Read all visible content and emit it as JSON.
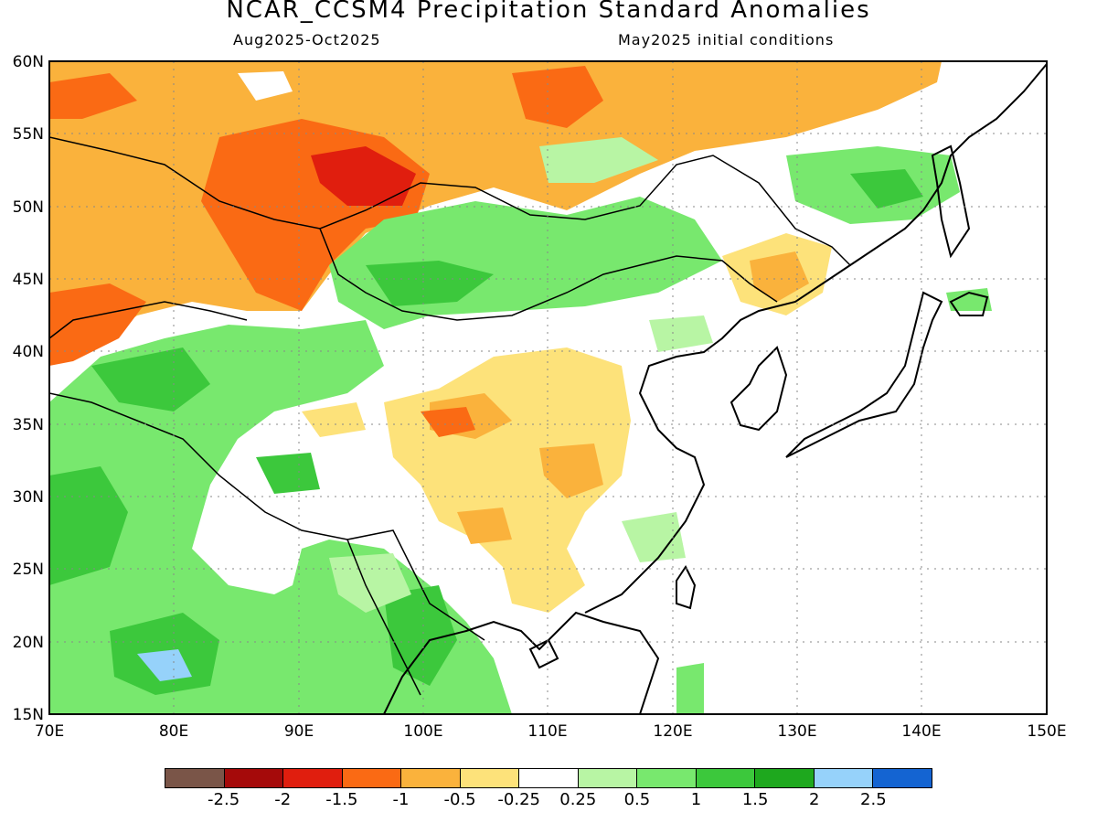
{
  "header": {
    "title": "NCAR_CCSM4 Precipitation Standard Anomalies",
    "period": "Aug2025-Oct2025",
    "init": "May2025 initial conditions"
  },
  "map": {
    "lon_labels": [
      "70E",
      "80E",
      "90E",
      "100E",
      "110E",
      "120E",
      "130E",
      "140E",
      "150E"
    ],
    "lat_labels": [
      "60N",
      "55N",
      "50N",
      "45N",
      "40N",
      "35N",
      "30N",
      "25N",
      "20N",
      "15N"
    ],
    "grid": "dotted"
  },
  "colorbar": {
    "colors": [
      "#7a5548",
      "#a50a0a",
      "#e01e0e",
      "#fa6a14",
      "#fab23c",
      "#fde27a",
      "#ffffff",
      "#b8f5a4",
      "#78e86e",
      "#3cc83c",
      "#1ea81e",
      "#96d2fa",
      "#1464d2"
    ],
    "labels": [
      "-2.5",
      "-2",
      "-1.5",
      "-1",
      "-0.5",
      "-0.25",
      "0.25",
      "0.5",
      "1",
      "1.5",
      "2",
      "2.5"
    ]
  }
}
